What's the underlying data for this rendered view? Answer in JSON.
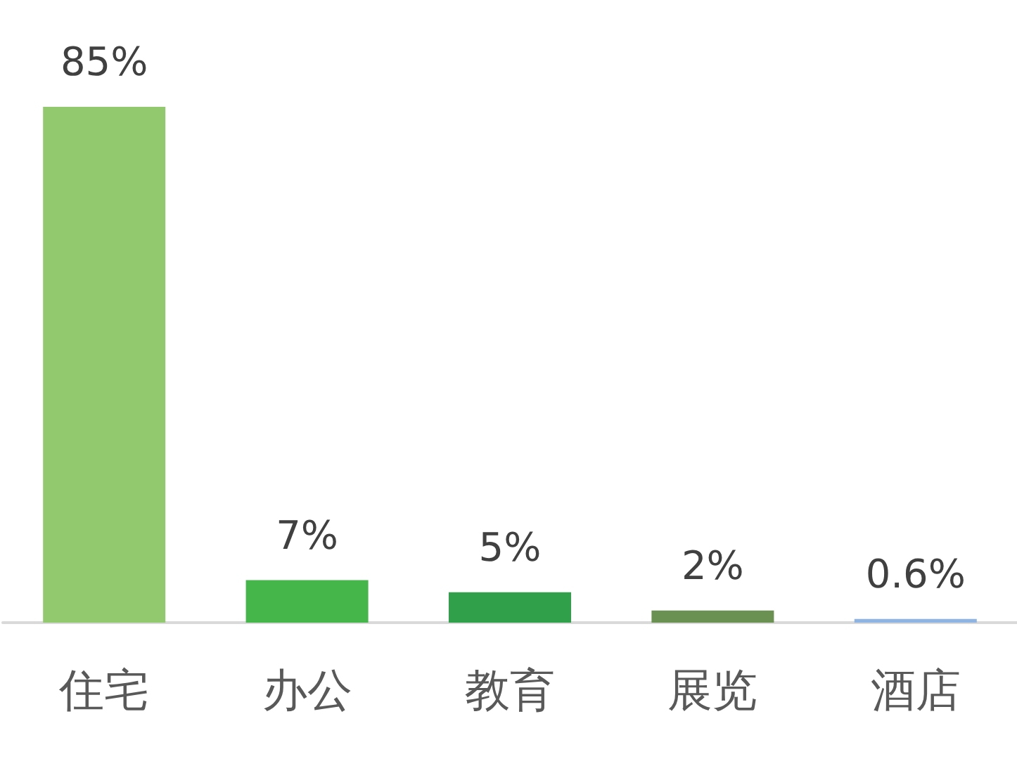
{
  "chart_data": {
    "type": "bar",
    "categories": [
      "住宅",
      "办公",
      "教育",
      "展览",
      "酒店"
    ],
    "values": [
      85,
      7,
      5,
      2,
      0.6
    ],
    "colors": [
      "#92c96f",
      "#45b649",
      "#30a04a",
      "#6a9152",
      "#8eb4e3"
    ],
    "value_labels": [
      "85%",
      "7%",
      "5%",
      "2%",
      "0.6%"
    ]
  }
}
